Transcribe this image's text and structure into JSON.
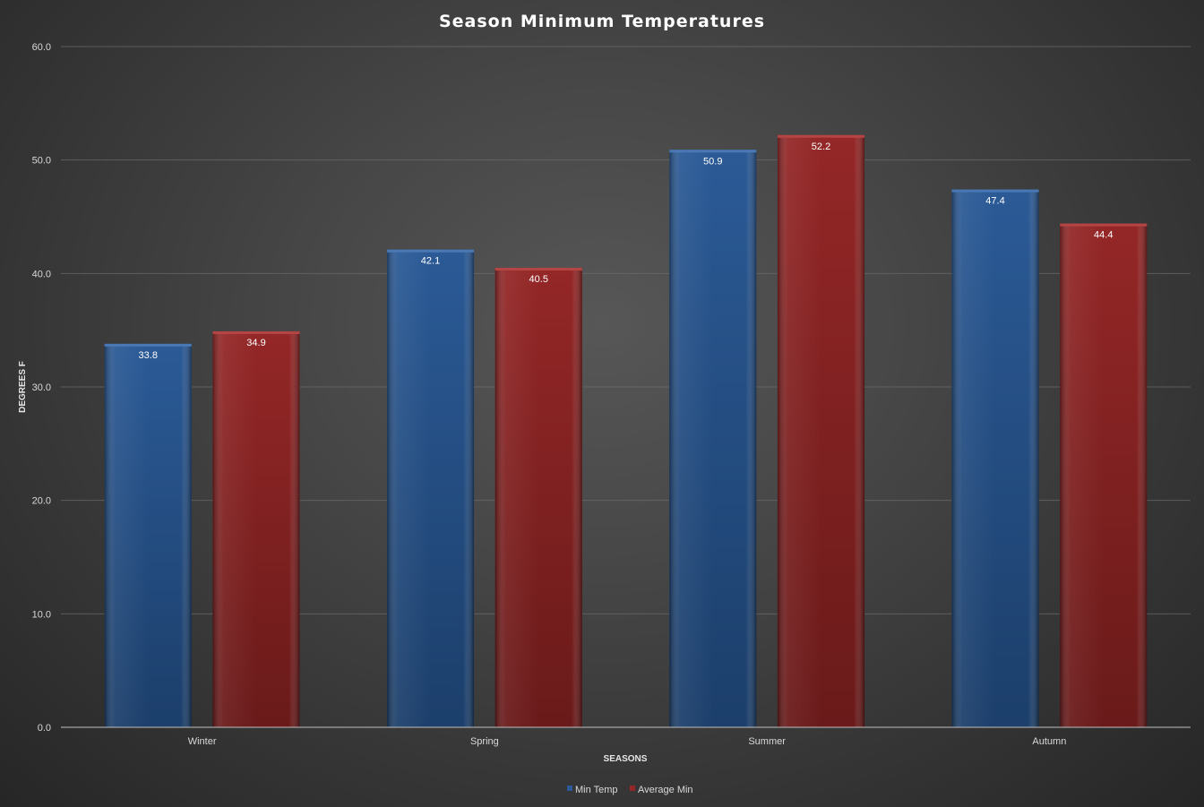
{
  "chart_data": {
    "type": "bar",
    "title": "Season Minimum Temperatures",
    "xlabel": "SEASONS",
    "ylabel": "DEGREES F",
    "categories": [
      "Winter",
      "Spring",
      "Summer",
      "Autumn"
    ],
    "series": [
      {
        "name": "Min Temp",
        "values": [
          33.8,
          42.1,
          50.9,
          47.4
        ],
        "color": "#234f87"
      },
      {
        "name": "Average Min",
        "values": [
          34.9,
          40.5,
          52.2,
          44.4
        ],
        "color": "#8a2424"
      }
    ],
    "ylim": [
      0,
      60
    ],
    "yticks": [
      "0.0",
      "10.0",
      "20.0",
      "30.0",
      "40.0",
      "50.0",
      "60.0"
    ],
    "data_labels": true,
    "grid": true,
    "legend": "bottom"
  }
}
